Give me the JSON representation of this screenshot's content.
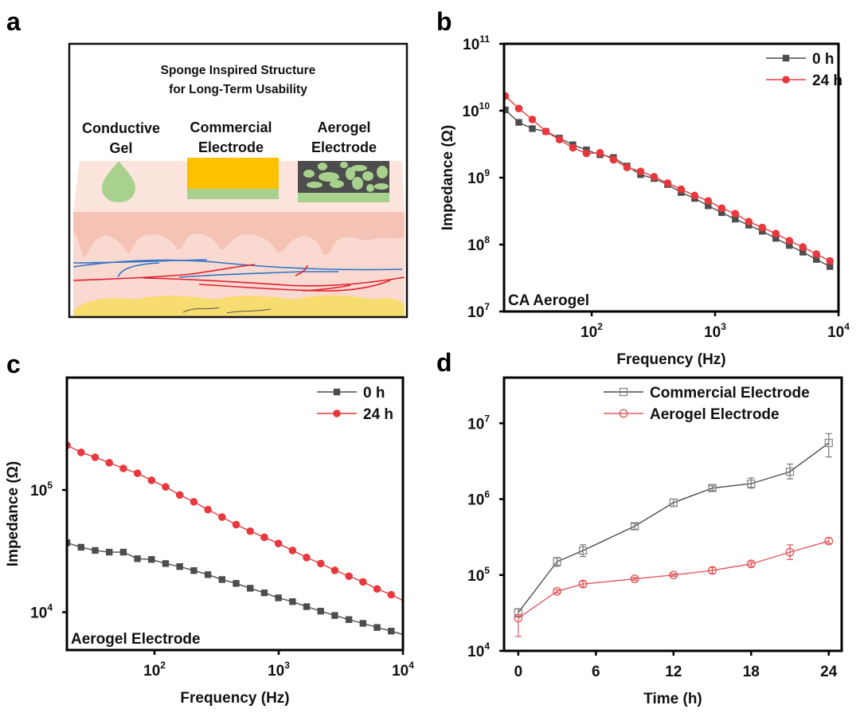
{
  "figure": {
    "panels": [
      {
        "letter": "a"
      },
      {
        "letter": "b"
      },
      {
        "letter": "c"
      },
      {
        "letter": "d"
      }
    ]
  },
  "schematic": {
    "title_line1": "Sponge Inspired Structure",
    "title_line2": "for Long-Term Usability",
    "items": [
      {
        "line1": "Conductive",
        "line2": "Gel"
      },
      {
        "line1": "Commercial",
        "line2": "Electrode"
      },
      {
        "line1": "Aerogel",
        "line2": "Electrode"
      }
    ],
    "colors": {
      "gel": "#a9d18e",
      "commercial_top": "#ffc000",
      "aerogel_matrix": "#4d4d4d",
      "skin_top": "#fbe5dc",
      "skin_mid": "#f4c3b6",
      "skin_lower": "#fad9d0",
      "vein": "#2e75c6",
      "artery": "#e0202e",
      "fat": "#f7dc6f"
    }
  },
  "chart_data": [
    {
      "panel": "b",
      "type": "line",
      "title": "",
      "xlabel": "Frequency (Hz)",
      "ylabel": "Impedance (Ω)",
      "xscale": "log",
      "yscale": "log",
      "xlim": [
        19.5,
        10000
      ],
      "ylim": [
        10000000.0,
        100000000000.0
      ],
      "xticks": [
        {
          "exp": "2"
        },
        {
          "exp": "3"
        },
        {
          "exp": "4"
        }
      ],
      "xtick_values": [
        100,
        1000,
        10000
      ],
      "yticks": [
        {
          "exp": "7"
        },
        {
          "exp": "8"
        },
        {
          "exp": "9"
        },
        {
          "exp": "10"
        },
        {
          "exp": "11"
        }
      ],
      "ytick_values": [
        10000000.0,
        100000000.0,
        1000000000.0,
        10000000000.0,
        100000000000.0
      ],
      "annotation": "CA Aerogel",
      "legend_position": "top-right",
      "grid": false,
      "log_x_start": 1.3,
      "log_x_step": 0.1096,
      "series": [
        {
          "name": "0 h",
          "color": "#4d4d4d",
          "marker": "square",
          "values": [
            10300000000.0,
            6700000000.0,
            5400000000.0,
            4900000000.0,
            3900000000.0,
            3100000000.0,
            2600000000.0,
            2200000000.0,
            2000000000.0,
            1490000000.0,
            1110000000.0,
            970000000.0,
            790000000.0,
            600000000.0,
            490000000.0,
            380000000.0,
            300000000.0,
            240000000.0,
            195000000.0,
            158000000.0,
            124000000.0,
            97000000.0,
            77000000.0,
            60000000.0,
            47000000.0
          ]
        },
        {
          "name": "24 h",
          "color": "#e8383d",
          "marker": "circle",
          "values": [
            16600000000.0,
            10800000000.0,
            7400000000.0,
            4900000000.0,
            3700000000.0,
            2800000000.0,
            2300000000.0,
            2350000000.0,
            1850000000.0,
            1420000000.0,
            1240000000.0,
            1030000000.0,
            830000000.0,
            670000000.0,
            540000000.0,
            450000000.0,
            350000000.0,
            290000000.0,
            220000000.0,
            180000000.0,
            146000000.0,
            114000000.0,
            92000000.0,
            72000000.0,
            57000000.0
          ]
        }
      ]
    },
    {
      "panel": "c",
      "type": "line",
      "title": "",
      "xlabel": "Frequency (Hz)",
      "ylabel": "Impedance (Ω)",
      "xscale": "log",
      "yscale": "log",
      "xlim": [
        19.7,
        10000
      ],
      "ylim": [
        4900.0,
        830000.0
      ],
      "xticks": [
        {
          "exp": "2"
        },
        {
          "exp": "3"
        },
        {
          "exp": "4"
        }
      ],
      "xtick_values": [
        100,
        1000,
        10000
      ],
      "yticks": [
        {
          "exp": "4"
        },
        {
          "exp": "5"
        }
      ],
      "ytick_values": [
        10000.0,
        100000.0
      ],
      "annotation": "Aerogel Electrode",
      "legend_position": "top-right",
      "grid": false,
      "log_x_start": 1.295,
      "log_x_step": 0.1135,
      "series": [
        {
          "name": "0 h",
          "color": "#4d4d4d",
          "marker": "square",
          "values": [
            37000.0,
            34000.0,
            32000.0,
            31000.0,
            31000.0,
            27400.0,
            27000.0,
            25000.0,
            23600.0,
            21900.0,
            20300.0,
            18500.0,
            17200.0,
            15700.0,
            14400.0,
            13100.0,
            12200.0,
            11100.0,
            10200.0,
            9400.0,
            8700.0,
            8100.0,
            7500.0,
            7000.0,
            6500.0
          ]
        },
        {
          "name": "24 h",
          "color": "#e8383d",
          "marker": "circle",
          "values": [
            232000.0,
            203000.0,
            185000.0,
            167000.0,
            150000.0,
            137000.0,
            120000.0,
            106000.0,
            91000.0,
            80000.0,
            69000.0,
            60000.0,
            52000.0,
            46000.0,
            41000.0,
            36500.0,
            32000.0,
            28000.0,
            25000.0,
            22000.0,
            19700.0,
            17700.0,
            15500.0,
            13900.0,
            12200.0
          ]
        }
      ]
    },
    {
      "panel": "d",
      "type": "line",
      "title": "",
      "xlabel": "Time (h)",
      "ylabel": "",
      "xscale": "linear",
      "yscale": "log",
      "xlim": [
        -1.1,
        25
      ],
      "ylim": [
        10000.0,
        40000000.0
      ],
      "xticks": [
        {
          "label": "0"
        },
        {
          "label": "6"
        },
        {
          "label": "12"
        },
        {
          "label": "18"
        },
        {
          "label": "24"
        }
      ],
      "xtick_values": [
        0,
        6,
        12,
        18,
        24
      ],
      "yticks": [
        {
          "exp": "4"
        },
        {
          "exp": "5"
        },
        {
          "exp": "6"
        },
        {
          "exp": "7"
        }
      ],
      "ytick_values": [
        10000.0,
        100000.0,
        1000000.0,
        10000000.0
      ],
      "legend_position": "top-right",
      "grid": false,
      "x": [
        0,
        3,
        5,
        9,
        12,
        15,
        18,
        21,
        24
      ],
      "series": [
        {
          "name": "Commercial Electrode",
          "color": "#4d4d4d",
          "marker": "open-square",
          "values": [
            32000.0,
            150000.0,
            210000.0,
            440000.0,
            900000.0,
            1400000.0,
            1600000.0,
            2300000.0,
            5500000.0
          ],
          "err_low": [
            28000.0,
            130000.0,
            175000.0,
            400000.0,
            800000.0,
            1300000.0,
            1400000.0,
            1850000.0,
            3600000.0
          ],
          "err_high": [
            36000.0,
            170000.0,
            250000.0,
            480000.0,
            1000000.0,
            1500000.0,
            1900000.0,
            2900000.0,
            7300000.0
          ]
        },
        {
          "name": "Aerogel Electrode",
          "color": "#e05a5f",
          "marker": "open-circle",
          "values": [
            27000.0,
            61000.0,
            76000.0,
            89000.0,
            100000.0,
            115000.0,
            140000.0,
            200000.0,
            280000.0
          ],
          "err_low": [
            15500.0,
            58000.0,
            70000.0,
            85000.0,
            96000.0,
            105000.0,
            130000.0,
            160000.0,
            260000.0
          ],
          "err_high": [
            30000.0,
            64000.0,
            83000.0,
            93000.0,
            104000.0,
            125000.0,
            150000.0,
            250000.0,
            310000.0
          ]
        }
      ]
    }
  ]
}
